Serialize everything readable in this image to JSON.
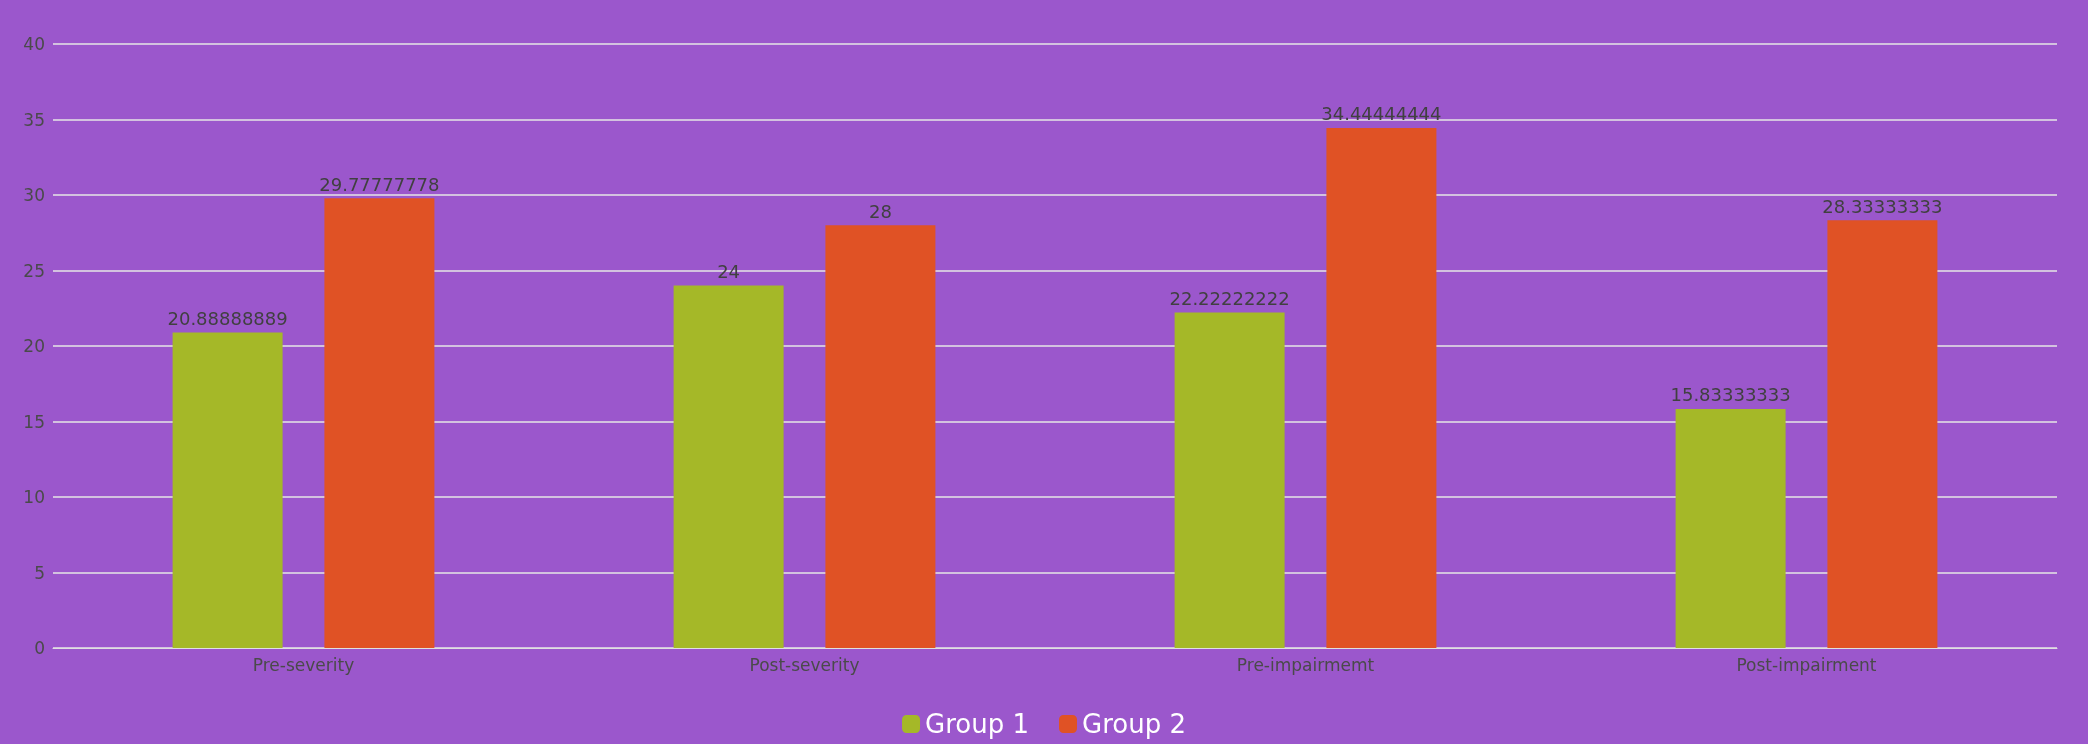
{
  "chart_data": {
    "type": "bar",
    "categories": [
      "Pre-severity",
      "Post-severity",
      "Pre-impairmemt",
      "Post-impairment"
    ],
    "series": [
      {
        "name": "Group 1",
        "color": "#a5b828",
        "values": [
          20.88888889,
          24,
          22.22222222,
          15.83333333
        ]
      },
      {
        "name": "Group 2",
        "color": "#e05225",
        "values": [
          29.77777778,
          28,
          34.44444444,
          28.33333333
        ]
      }
    ],
    "ylim": [
      0,
      40
    ],
    "yticks": [
      0,
      5,
      10,
      15,
      20,
      25,
      30,
      35,
      40
    ],
    "grid": "y",
    "legend": "bottom",
    "data_labels": true
  }
}
